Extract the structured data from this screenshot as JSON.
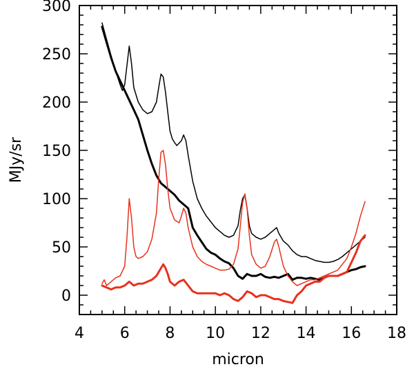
{
  "chart_data": {
    "type": "line",
    "xlabel": "micron",
    "ylabel": "MJy/sr",
    "xlim": [
      4,
      18
    ],
    "ylim": [
      -20,
      300
    ],
    "xticks": [
      4,
      6,
      8,
      10,
      12,
      14,
      16,
      18
    ],
    "yticks": [
      0,
      50,
      100,
      150,
      200,
      250,
      300
    ],
    "grid": false,
    "series": [
      {
        "color": "#000000",
        "width": 1.5,
        "points": [
          [
            5.0,
            282
          ],
          [
            5.2,
            265
          ],
          [
            5.4,
            248
          ],
          [
            5.6,
            232
          ],
          [
            5.8,
            218
          ],
          [
            5.9,
            212
          ],
          [
            6.0,
            218
          ],
          [
            6.1,
            238
          ],
          [
            6.2,
            258
          ],
          [
            6.3,
            240
          ],
          [
            6.4,
            215
          ],
          [
            6.6,
            200
          ],
          [
            6.8,
            192
          ],
          [
            7.0,
            188
          ],
          [
            7.2,
            190
          ],
          [
            7.4,
            200
          ],
          [
            7.5,
            215
          ],
          [
            7.6,
            229
          ],
          [
            7.7,
            226
          ],
          [
            7.8,
            210
          ],
          [
            7.9,
            190
          ],
          [
            8.0,
            170
          ],
          [
            8.1,
            162
          ],
          [
            8.2,
            158
          ],
          [
            8.3,
            155
          ],
          [
            8.5,
            160
          ],
          [
            8.6,
            166
          ],
          [
            8.7,
            160
          ],
          [
            8.8,
            145
          ],
          [
            9.0,
            118
          ],
          [
            9.2,
            100
          ],
          [
            9.4,
            90
          ],
          [
            9.6,
            82
          ],
          [
            9.8,
            76
          ],
          [
            10.0,
            70
          ],
          [
            10.2,
            66
          ],
          [
            10.4,
            62
          ],
          [
            10.6,
            60
          ],
          [
            10.8,
            62
          ],
          [
            11.0,
            72
          ],
          [
            11.1,
            88
          ],
          [
            11.2,
            100
          ],
          [
            11.3,
            104
          ],
          [
            11.4,
            90
          ],
          [
            11.5,
            72
          ],
          [
            11.6,
            64
          ],
          [
            11.8,
            60
          ],
          [
            12.0,
            58
          ],
          [
            12.2,
            60
          ],
          [
            12.4,
            64
          ],
          [
            12.6,
            68
          ],
          [
            12.7,
            70
          ],
          [
            12.8,
            64
          ],
          [
            13.0,
            56
          ],
          [
            13.2,
            52
          ],
          [
            13.4,
            46
          ],
          [
            13.6,
            42
          ],
          [
            13.8,
            40
          ],
          [
            14.0,
            40
          ],
          [
            14.2,
            38
          ],
          [
            14.4,
            36
          ],
          [
            14.6,
            35
          ],
          [
            14.8,
            34
          ],
          [
            15.0,
            34
          ],
          [
            15.2,
            35
          ],
          [
            15.4,
            37
          ],
          [
            15.6,
            40
          ],
          [
            15.8,
            44
          ],
          [
            16.0,
            48
          ],
          [
            16.2,
            52
          ],
          [
            16.4,
            56
          ],
          [
            16.6,
            60
          ]
        ]
      },
      {
        "color": "#000000",
        "width": 3,
        "points": [
          [
            5.0,
            278
          ],
          [
            5.2,
            262
          ],
          [
            5.4,
            246
          ],
          [
            5.6,
            232
          ],
          [
            5.8,
            222
          ],
          [
            6.0,
            212
          ],
          [
            6.2,
            202
          ],
          [
            6.4,
            192
          ],
          [
            6.6,
            182
          ],
          [
            6.8,
            166
          ],
          [
            7.0,
            150
          ],
          [
            7.2,
            136
          ],
          [
            7.4,
            124
          ],
          [
            7.6,
            116
          ],
          [
            7.8,
            112
          ],
          [
            8.0,
            108
          ],
          [
            8.2,
            104
          ],
          [
            8.4,
            98
          ],
          [
            8.6,
            94
          ],
          [
            8.8,
            90
          ],
          [
            9.0,
            70
          ],
          [
            9.2,
            62
          ],
          [
            9.4,
            55
          ],
          [
            9.6,
            48
          ],
          [
            9.8,
            44
          ],
          [
            10.0,
            42
          ],
          [
            10.2,
            38
          ],
          [
            10.4,
            35
          ],
          [
            10.6,
            33
          ],
          [
            10.8,
            28
          ],
          [
            11.0,
            20
          ],
          [
            11.2,
            17
          ],
          [
            11.4,
            22
          ],
          [
            11.6,
            20
          ],
          [
            11.8,
            20
          ],
          [
            12.0,
            22
          ],
          [
            12.2,
            19
          ],
          [
            12.4,
            18
          ],
          [
            12.6,
            19
          ],
          [
            12.8,
            18
          ],
          [
            13.0,
            20
          ],
          [
            13.2,
            22
          ],
          [
            13.4,
            16
          ],
          [
            13.6,
            18
          ],
          [
            13.8,
            18
          ],
          [
            14.0,
            17
          ],
          [
            14.2,
            18
          ],
          [
            14.4,
            17
          ],
          [
            14.6,
            16
          ],
          [
            14.8,
            18
          ],
          [
            15.0,
            20
          ],
          [
            15.2,
            20
          ],
          [
            15.4,
            20
          ],
          [
            15.6,
            22
          ],
          [
            15.8,
            24
          ],
          [
            16.0,
            26
          ],
          [
            16.2,
            27
          ],
          [
            16.4,
            29
          ],
          [
            16.6,
            30
          ]
        ]
      },
      {
        "color": "#e8301c",
        "width": 1.5,
        "points": [
          [
            5.0,
            12
          ],
          [
            5.1,
            16
          ],
          [
            5.2,
            10
          ],
          [
            5.4,
            14
          ],
          [
            5.6,
            18
          ],
          [
            5.8,
            20
          ],
          [
            6.0,
            30
          ],
          [
            6.1,
            60
          ],
          [
            6.2,
            100
          ],
          [
            6.3,
            80
          ],
          [
            6.4,
            50
          ],
          [
            6.5,
            40
          ],
          [
            6.6,
            38
          ],
          [
            6.8,
            40
          ],
          [
            7.0,
            45
          ],
          [
            7.2,
            58
          ],
          [
            7.4,
            85
          ],
          [
            7.5,
            120
          ],
          [
            7.6,
            148
          ],
          [
            7.7,
            150
          ],
          [
            7.8,
            135
          ],
          [
            7.9,
            110
          ],
          [
            8.0,
            90
          ],
          [
            8.2,
            78
          ],
          [
            8.4,
            75
          ],
          [
            8.5,
            82
          ],
          [
            8.6,
            90
          ],
          [
            8.7,
            85
          ],
          [
            8.8,
            70
          ],
          [
            9.0,
            50
          ],
          [
            9.2,
            40
          ],
          [
            9.4,
            35
          ],
          [
            9.6,
            32
          ],
          [
            9.8,
            30
          ],
          [
            10.0,
            28
          ],
          [
            10.2,
            26
          ],
          [
            10.4,
            26
          ],
          [
            10.6,
            27
          ],
          [
            10.8,
            32
          ],
          [
            11.0,
            48
          ],
          [
            11.1,
            72
          ],
          [
            11.2,
            96
          ],
          [
            11.3,
            105
          ],
          [
            11.4,
            90
          ],
          [
            11.5,
            62
          ],
          [
            11.6,
            42
          ],
          [
            11.8,
            32
          ],
          [
            12.0,
            28
          ],
          [
            12.2,
            30
          ],
          [
            12.4,
            40
          ],
          [
            12.6,
            55
          ],
          [
            12.7,
            58
          ],
          [
            12.8,
            50
          ],
          [
            13.0,
            30
          ],
          [
            13.2,
            20
          ],
          [
            13.4,
            14
          ],
          [
            13.6,
            10
          ],
          [
            13.8,
            12
          ],
          [
            14.0,
            14
          ],
          [
            14.2,
            16
          ],
          [
            14.4,
            16
          ],
          [
            14.6,
            18
          ],
          [
            14.8,
            20
          ],
          [
            15.0,
            22
          ],
          [
            15.2,
            24
          ],
          [
            15.4,
            26
          ],
          [
            15.6,
            32
          ],
          [
            15.8,
            38
          ],
          [
            16.0,
            50
          ],
          [
            16.2,
            64
          ],
          [
            16.4,
            82
          ],
          [
            16.6,
            97
          ]
        ]
      },
      {
        "color": "#e8301c",
        "width": 3,
        "points": [
          [
            5.0,
            10
          ],
          [
            5.2,
            8
          ],
          [
            5.4,
            6
          ],
          [
            5.6,
            8
          ],
          [
            5.8,
            8
          ],
          [
            6.0,
            10
          ],
          [
            6.2,
            14
          ],
          [
            6.4,
            10
          ],
          [
            6.6,
            12
          ],
          [
            6.8,
            12
          ],
          [
            7.0,
            14
          ],
          [
            7.2,
            16
          ],
          [
            7.4,
            20
          ],
          [
            7.6,
            28
          ],
          [
            7.7,
            32
          ],
          [
            7.8,
            28
          ],
          [
            7.9,
            22
          ],
          [
            8.0,
            14
          ],
          [
            8.2,
            10
          ],
          [
            8.4,
            14
          ],
          [
            8.6,
            16
          ],
          [
            8.8,
            10
          ],
          [
            9.0,
            4
          ],
          [
            9.2,
            2
          ],
          [
            9.4,
            2
          ],
          [
            9.6,
            2
          ],
          [
            9.8,
            2
          ],
          [
            10.0,
            2
          ],
          [
            10.2,
            0
          ],
          [
            10.4,
            2
          ],
          [
            10.6,
            0
          ],
          [
            10.8,
            -4
          ],
          [
            11.0,
            -6
          ],
          [
            11.2,
            -2
          ],
          [
            11.4,
            4
          ],
          [
            11.6,
            2
          ],
          [
            11.8,
            -2
          ],
          [
            12.0,
            0
          ],
          [
            12.2,
            0
          ],
          [
            12.4,
            -2
          ],
          [
            12.6,
            -4
          ],
          [
            12.8,
            -4
          ],
          [
            13.0,
            -6
          ],
          [
            13.2,
            -7
          ],
          [
            13.4,
            -8
          ],
          [
            13.6,
            0
          ],
          [
            13.8,
            4
          ],
          [
            14.0,
            10
          ],
          [
            14.2,
            12
          ],
          [
            14.4,
            14
          ],
          [
            14.6,
            14
          ],
          [
            14.8,
            18
          ],
          [
            15.0,
            20
          ],
          [
            15.2,
            20
          ],
          [
            15.4,
            20
          ],
          [
            15.6,
            22
          ],
          [
            15.8,
            24
          ],
          [
            16.0,
            34
          ],
          [
            16.2,
            44
          ],
          [
            16.4,
            56
          ],
          [
            16.6,
            62
          ]
        ]
      }
    ]
  }
}
